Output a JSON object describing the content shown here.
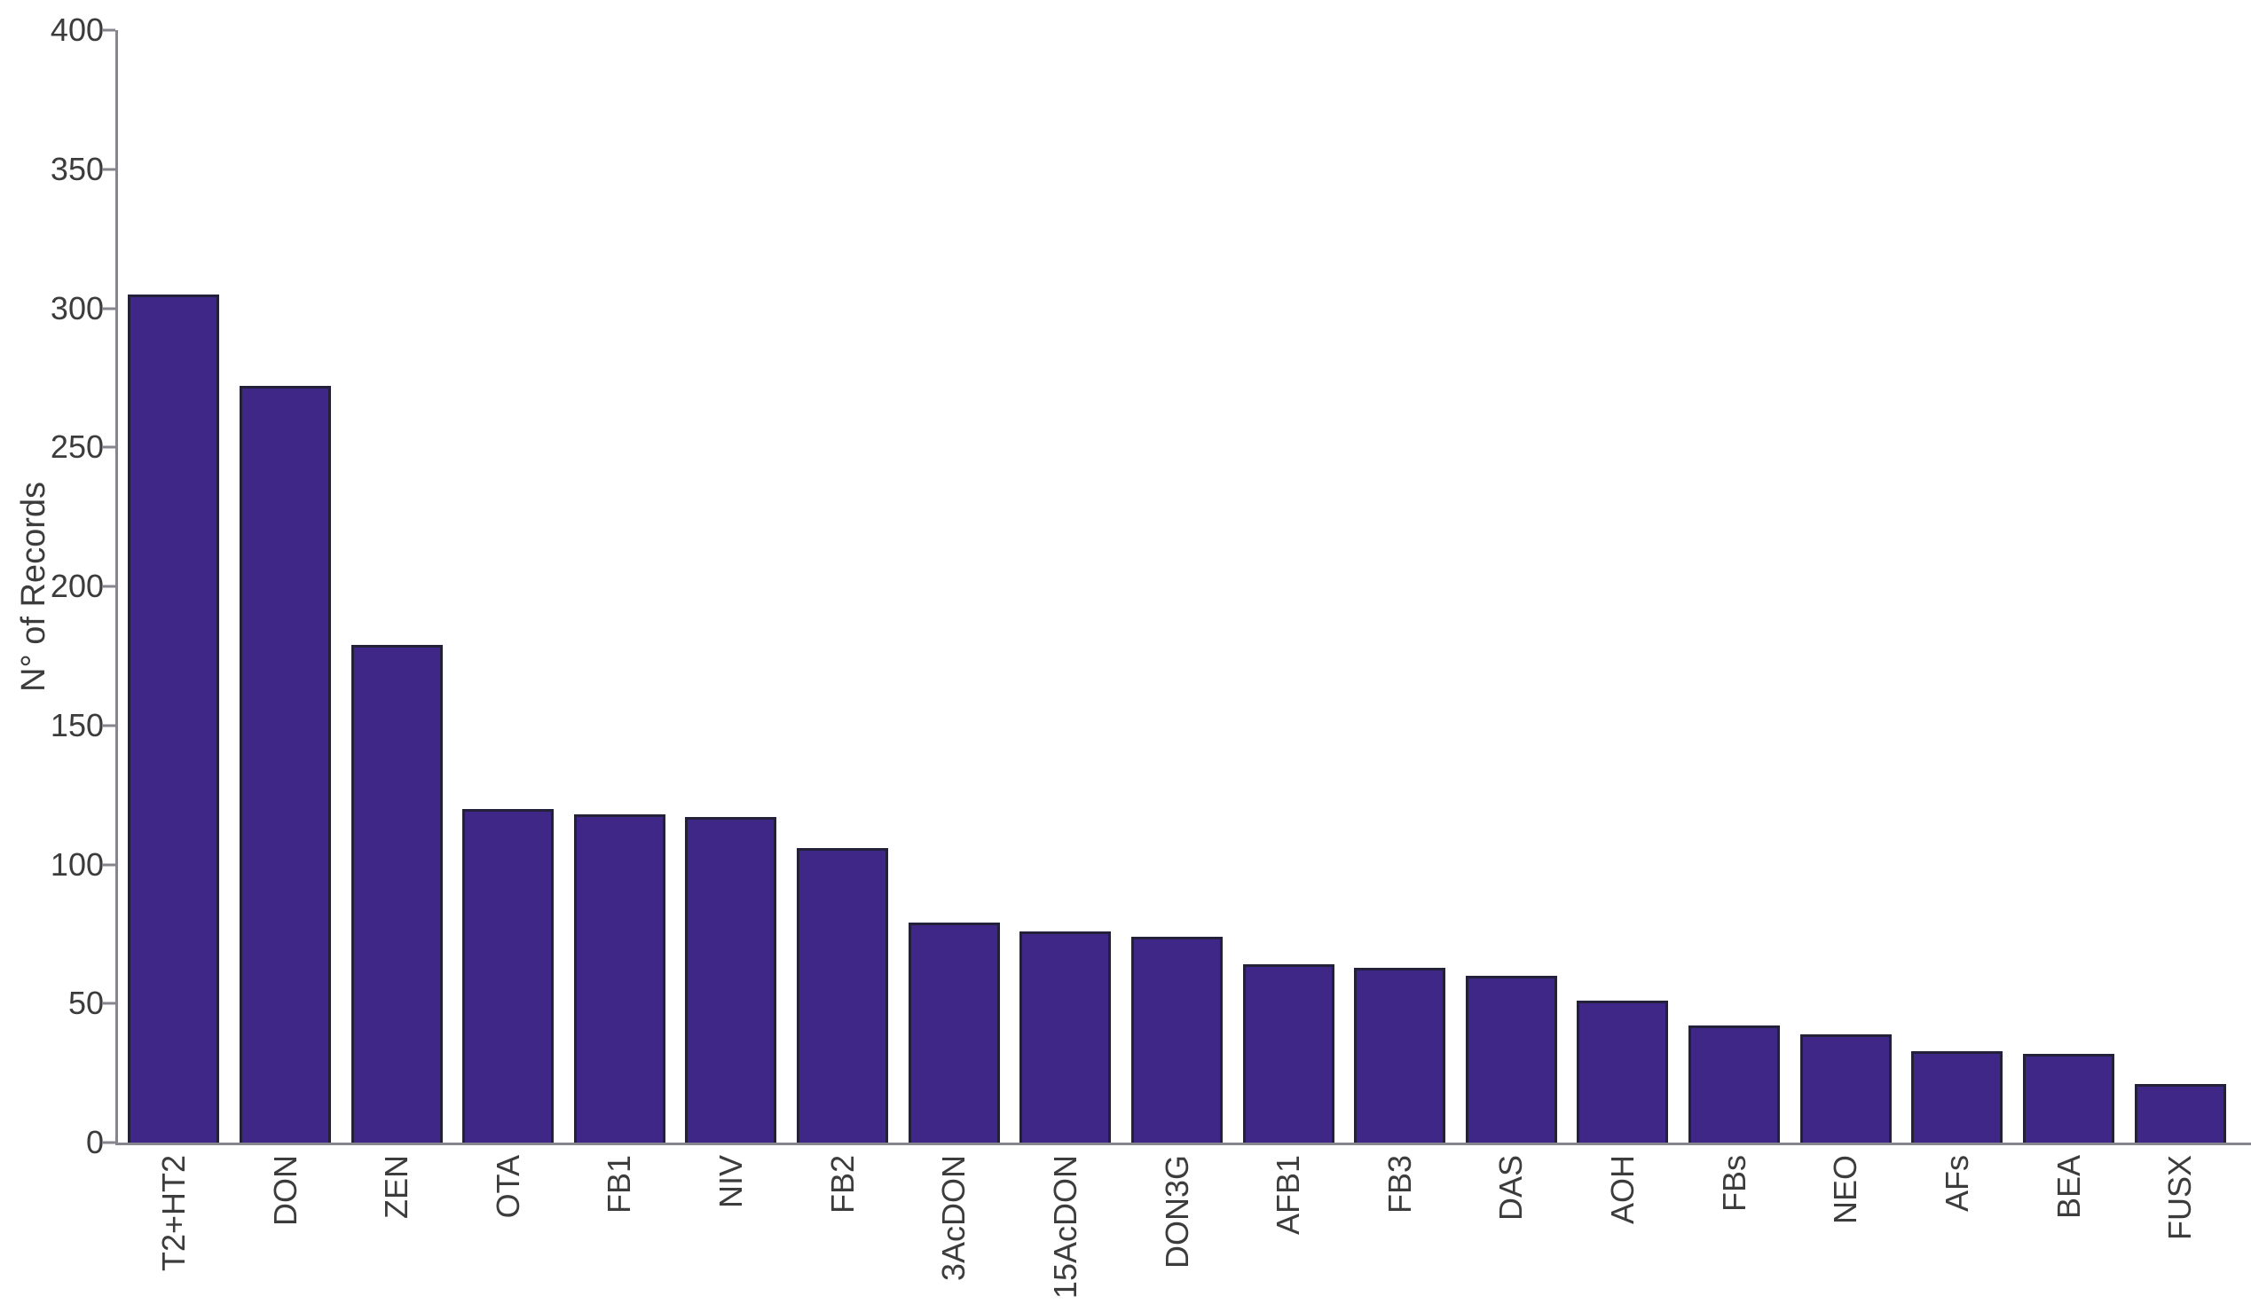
{
  "chart_data": {
    "type": "bar",
    "title": "",
    "xlabel": "",
    "ylabel": "N° of Records",
    "ylim": [
      0,
      400
    ],
    "yticks": [
      0,
      50,
      100,
      150,
      200,
      250,
      300,
      350,
      400
    ],
    "grid": false,
    "legend": null,
    "categories": [
      "T2+HT2",
      "DON",
      "ZEN",
      "OTA",
      "FB1",
      "NIV",
      "FB2",
      "3AcDON",
      "15AcDON",
      "DON3G",
      "AFB1",
      "FB3",
      "DAS",
      "AOH",
      "FBs",
      "NEO",
      "AFs",
      "BEA",
      "FUSX"
    ],
    "values": [
      305,
      272,
      179,
      120,
      118,
      117,
      106,
      79,
      76,
      74,
      64,
      63,
      60,
      51,
      42,
      39,
      33,
      32,
      21
    ]
  },
  "colors": {
    "background": "#FFFFFF",
    "bar_fill": "#3E2787",
    "bar_edge": "#23203A",
    "axis_line": "#85858D",
    "tick_text": "#3C3C3C"
  }
}
